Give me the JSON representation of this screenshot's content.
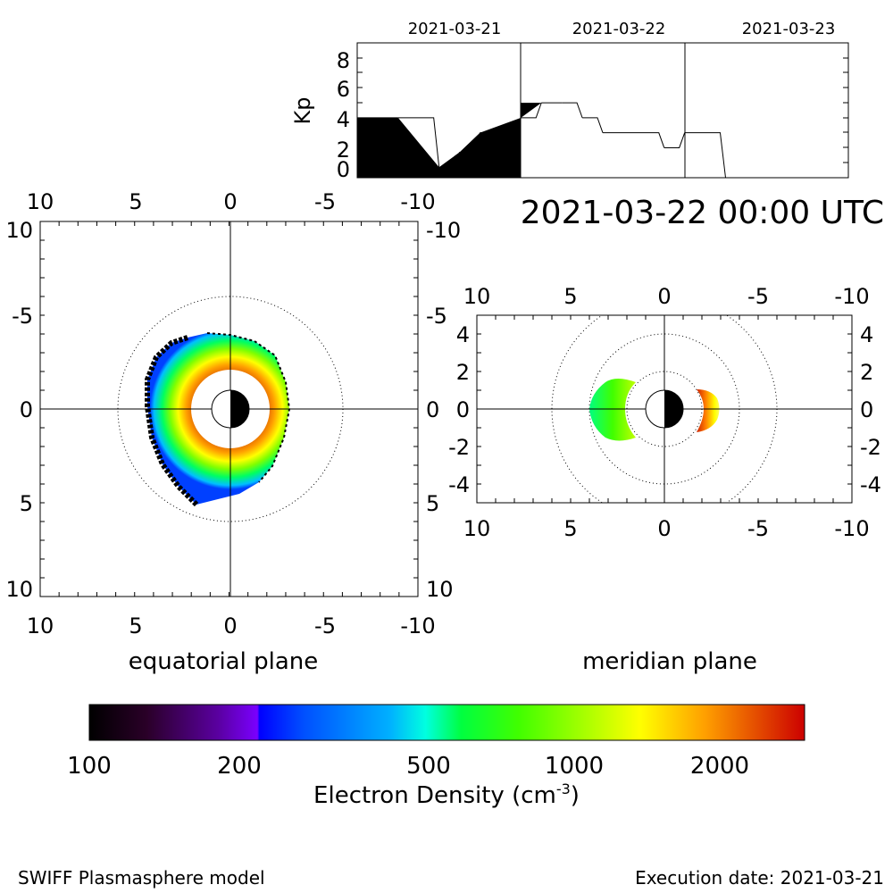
{
  "timestamp": "2021-03-22 00:00 UTC",
  "footer": {
    "left": "SWIFF Plasmasphere model",
    "right": "Execution date: 2021-03-21"
  },
  "kp_panel": {
    "ylabel": "Kp",
    "date_labels": [
      "2021-03-21",
      "2021-03-22",
      "2021-03-23"
    ],
    "y_ticks": [
      "0",
      "2",
      "4",
      "6",
      "8"
    ]
  },
  "equatorial": {
    "caption": "equatorial plane",
    "x_ticks_bottom": [
      "10",
      "5",
      "0",
      "-5",
      "-10"
    ],
    "x_ticks_top": [
      "10",
      "5",
      "0",
      "-5",
      "-10"
    ],
    "y_ticks_left": [
      "10",
      "-5",
      "0",
      "5",
      "10"
    ],
    "y_ticks_right": [
      "-10",
      "-5",
      "0",
      "5",
      "10"
    ]
  },
  "meridian": {
    "caption": "meridian plane",
    "x_ticks_bottom": [
      "10",
      "5",
      "0",
      "-5",
      "-10"
    ],
    "x_ticks_top": [
      "10",
      "5",
      "0",
      "-5",
      "-10"
    ],
    "y_ticks_left": [
      "4",
      "2",
      "0",
      "-2",
      "-4"
    ],
    "y_ticks_right": [
      "4",
      "2",
      "0",
      "-2",
      "-4"
    ]
  },
  "colorbar": {
    "ticks": [
      "100",
      "200",
      "500",
      "1000",
      "2000"
    ]
  },
  "chart_data": [
    {
      "type": "area",
      "title": "",
      "ylabel": "Kp",
      "x_start": "2021-03-20T12:00",
      "x_end": "2021-03-23T12:00",
      "ylim": [
        0,
        9
      ],
      "series": [
        {
          "values": [
            {
              "t": "2021-03-20T12:00",
              "kp": 4.0
            },
            {
              "t": "2021-03-20T18:00",
              "kp": 4.0
            },
            {
              "t": "2021-03-21T00:00",
              "kp": 0.7
            },
            {
              "t": "2021-03-21T03:00",
              "kp": 1.7
            },
            {
              "t": "2021-03-21T06:00",
              "kp": 3.0
            },
            {
              "t": "2021-03-21T12:00",
              "kp": 4.0
            },
            {
              "t": "2021-03-21T15:00",
              "kp": 5.0
            },
            {
              "t": "2021-03-21T18:00",
              "kp": 5.0
            },
            {
              "t": "2021-03-21T21:00",
              "kp": 4.0
            },
            {
              "t": "2021-03-22T00:00",
              "kp": 3.0
            },
            {
              "t": "2021-03-22T09:00",
              "kp": 2.0
            },
            {
              "t": "2021-03-22T12:00",
              "kp": 3.0
            },
            {
              "t": "2021-03-22T18:00",
              "kp": 0.0
            }
          ]
        }
      ],
      "filled_until": "2021-03-21T18:00"
    },
    {
      "type": "heatmap",
      "title": "equatorial plane",
      "xlim": [
        10,
        -10
      ],
      "ylim": [
        -10,
        10
      ],
      "center": [
        0,
        0
      ],
      "inner_radius": 1.0,
      "plasmapause_radius": [
        2.9,
        4.5
      ],
      "dotted_circles_radius": [
        6,
        3
      ],
      "density_range_cm3": [
        100,
        3000
      ]
    },
    {
      "type": "heatmap",
      "title": "meridian plane",
      "xlim": [
        10,
        -10
      ],
      "ylim": [
        -5,
        5
      ],
      "inner_radius": 1.0,
      "lobe_extent_left": [
        1.6,
        4.0
      ],
      "lobe_extent_right": [
        1.6,
        3.0
      ],
      "dotted_circles_radius": [
        6,
        4,
        2
      ],
      "density_range_cm3": [
        100,
        3000
      ]
    },
    {
      "type": "heatmap",
      "title": "",
      "xlabel": "Electron Density (cm-3)",
      "scale": "log",
      "range": [
        100,
        3000
      ],
      "ticks": [
        100,
        200,
        500,
        1000,
        2000
      ]
    }
  ]
}
